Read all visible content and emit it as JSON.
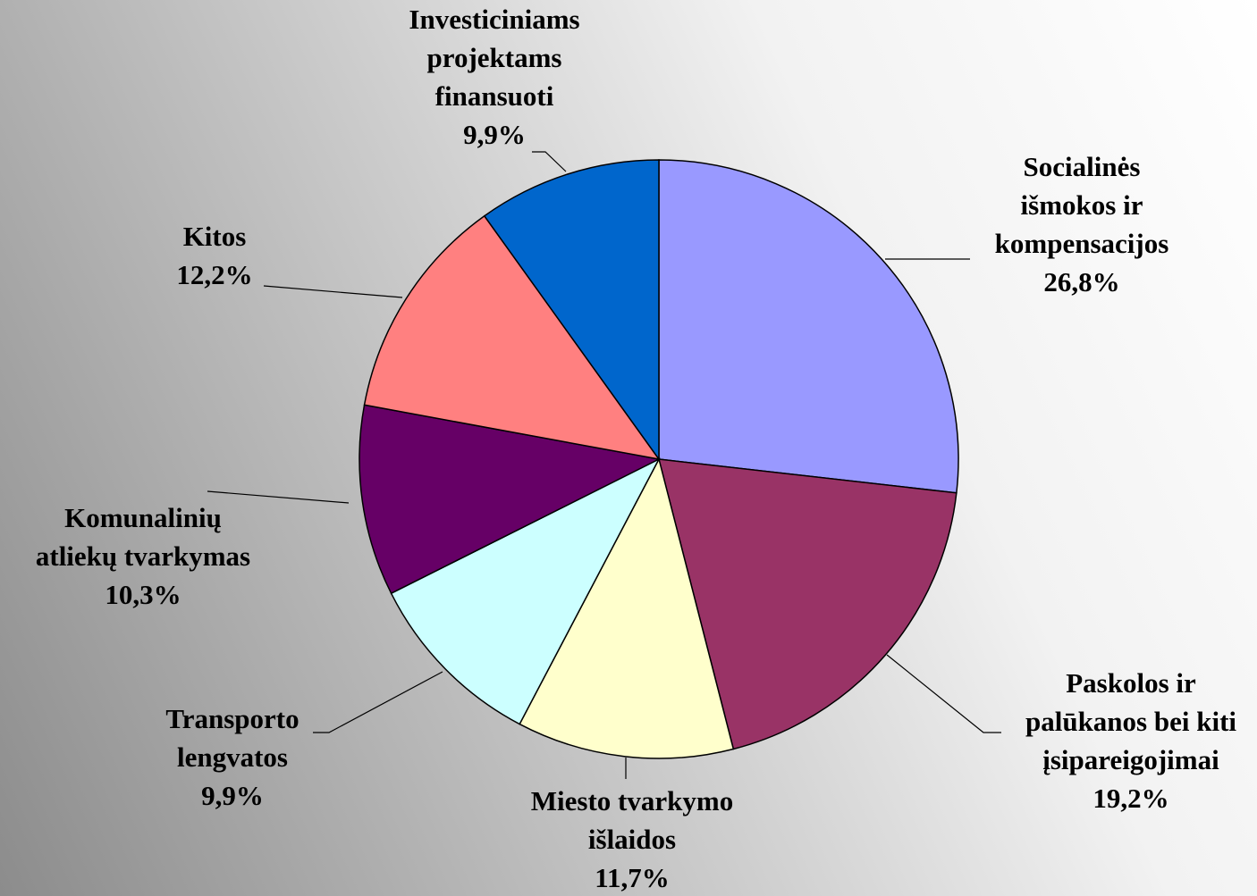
{
  "chart_data": {
    "type": "pie",
    "categories": [
      [
        "Socialinės",
        "išmokos ir",
        "kompensacijos"
      ],
      [
        "Paskolos ir",
        "palūkanos bei kiti",
        "įsipareigojimai"
      ],
      [
        "Miesto tvarkymo",
        "išlaidos"
      ],
      [
        "Transporto",
        "lengvatos"
      ],
      [
        "Komunalinių",
        "atliekų tvarkymas"
      ],
      [
        "Kitos"
      ],
      [
        "Investiciniams",
        "projektams",
        "finansuoti"
      ]
    ],
    "values": [
      26.8,
      19.2,
      11.7,
      9.9,
      10.3,
      12.2,
      9.9
    ],
    "value_labels": [
      "26,8%",
      "19,2%",
      "11,7%",
      "9,9%",
      "10,3%",
      "12,2%",
      "9,9%"
    ],
    "colors": [
      "#9999ff",
      "#993366",
      "#ffffcc",
      "#ccffff",
      "#660066",
      "#ff8080",
      "#0066cc"
    ]
  }
}
